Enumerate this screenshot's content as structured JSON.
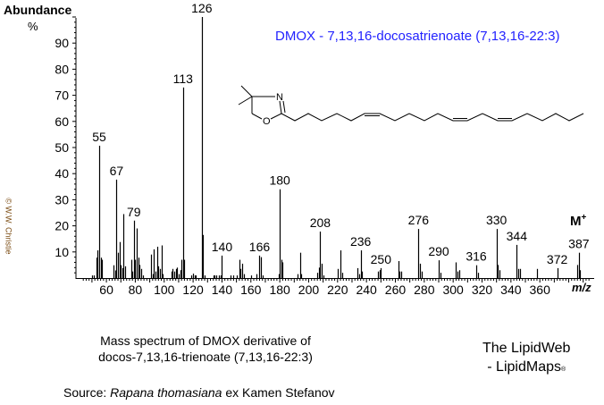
{
  "chart_data": {
    "type": "bar",
    "title": "DMOX - 7,13,16-docosatrienoate (7,13,16-22:3)",
    "ylabel": "Abundance",
    "ylabel_unit": "%",
    "xlabel": "m/z",
    "xlim": [
      40,
      396
    ],
    "ylim": [
      0,
      100
    ],
    "x_ticks": [
      60,
      80,
      100,
      120,
      140,
      160,
      180,
      200,
      220,
      240,
      260,
      280,
      300,
      320,
      340,
      360
    ],
    "y_ticks": [
      10,
      20,
      30,
      40,
      50,
      60,
      70,
      80,
      90
    ],
    "grid": false,
    "molecular_ion_label": "M+",
    "molecular_ion": 387,
    "labeled_peaks": [
      55,
      67,
      79,
      113,
      126,
      140,
      166,
      180,
      208,
      236,
      250,
      276,
      290,
      316,
      330,
      344,
      372,
      387
    ],
    "peaks": [
      [
        50,
        1
      ],
      [
        51,
        1
      ],
      [
        53,
        7.8
      ],
      [
        54,
        10.6
      ],
      [
        55,
        50.7
      ],
      [
        56,
        7.8
      ],
      [
        57,
        7
      ],
      [
        65,
        4.9
      ],
      [
        66,
        2.9
      ],
      [
        67,
        37.7
      ],
      [
        68,
        9.7
      ],
      [
        69,
        13.8
      ],
      [
        70,
        4.9
      ],
      [
        71,
        3.8
      ],
      [
        72,
        24.5
      ],
      [
        73,
        4.5
      ],
      [
        77,
        7
      ],
      [
        78,
        2.5
      ],
      [
        79,
        22
      ],
      [
        80,
        7
      ],
      [
        81,
        19
      ],
      [
        82,
        7.8
      ],
      [
        83,
        5
      ],
      [
        84,
        3.5
      ],
      [
        85,
        1
      ],
      [
        91,
        9
      ],
      [
        92,
        1.5
      ],
      [
        93,
        11
      ],
      [
        94,
        2.5
      ],
      [
        95,
        12
      ],
      [
        96,
        4.5
      ],
      [
        97,
        3.5
      ],
      [
        98,
        12.5
      ],
      [
        99,
        1.5
      ],
      [
        105,
        2.5
      ],
      [
        106,
        3.5
      ],
      [
        107,
        2.5
      ],
      [
        108,
        3.5
      ],
      [
        109,
        4
      ],
      [
        110,
        1.5
      ],
      [
        111,
        3
      ],
      [
        112,
        7
      ],
      [
        113,
        73
      ],
      [
        114,
        7
      ],
      [
        119,
        1
      ],
      [
        120,
        1.7
      ],
      [
        121,
        1
      ],
      [
        122,
        1
      ],
      [
        126,
        100
      ],
      [
        127,
        16.5
      ],
      [
        128,
        1
      ],
      [
        134,
        1
      ],
      [
        135,
        1
      ],
      [
        136,
        1
      ],
      [
        138,
        1
      ],
      [
        139,
        1
      ],
      [
        140,
        8.6
      ],
      [
        146,
        1
      ],
      [
        148,
        1
      ],
      [
        150,
        1
      ],
      [
        152,
        7
      ],
      [
        153,
        3.5
      ],
      [
        154,
        5.5
      ],
      [
        155,
        1.5
      ],
      [
        160,
        1
      ],
      [
        164,
        1.5
      ],
      [
        166,
        8.6
      ],
      [
        167,
        8
      ],
      [
        168,
        1
      ],
      [
        179,
        1.5
      ],
      [
        180,
        34
      ],
      [
        181,
        7
      ],
      [
        182,
        6
      ],
      [
        192,
        1.5
      ],
      [
        194,
        9.7
      ],
      [
        195,
        1.5
      ],
      [
        206,
        2
      ],
      [
        207,
        4
      ],
      [
        208,
        17.8
      ],
      [
        209,
        5.5
      ],
      [
        210,
        1
      ],
      [
        220,
        3.5
      ],
      [
        222,
        10.6
      ],
      [
        223,
        2
      ],
      [
        234,
        3.8
      ],
      [
        235,
        1.5
      ],
      [
        236,
        10.6
      ],
      [
        237,
        2.5
      ],
      [
        248,
        2.5
      ],
      [
        249,
        3
      ],
      [
        250,
        3.8
      ],
      [
        262,
        6.5
      ],
      [
        263,
        2.5
      ],
      [
        264,
        2.5
      ],
      [
        276,
        18.8
      ],
      [
        277,
        5.5
      ],
      [
        278,
        2.5
      ],
      [
        290,
        6.8
      ],
      [
        291,
        2
      ],
      [
        302,
        6
      ],
      [
        303,
        2.5
      ],
      [
        304,
        3
      ],
      [
        316,
        4.9
      ],
      [
        317,
        2
      ],
      [
        330,
        18.8
      ],
      [
        331,
        5
      ],
      [
        332,
        3
      ],
      [
        344,
        12.7
      ],
      [
        345,
        3.5
      ],
      [
        346,
        3.5
      ],
      [
        358,
        3.5
      ],
      [
        372,
        3.8
      ],
      [
        386,
        5
      ],
      [
        387,
        9.7
      ],
      [
        388,
        3
      ]
    ]
  },
  "structure_labels": {
    "n": "N",
    "o": "O"
  },
  "copyright": "© W.W. Christie",
  "caption": {
    "line1": "Mass spectrum of DMOX derivative of",
    "line2": "docos-7,13,16-trienoate  (7,13,16-22:3)"
  },
  "brand": {
    "line1": "The LipidWeb",
    "line2": "- LipidMaps",
    "reg": "®"
  },
  "source": {
    "prefix": "Source: ",
    "species": "Rapana thomasiana",
    "suffix": " ex Kamen Stefanov"
  }
}
